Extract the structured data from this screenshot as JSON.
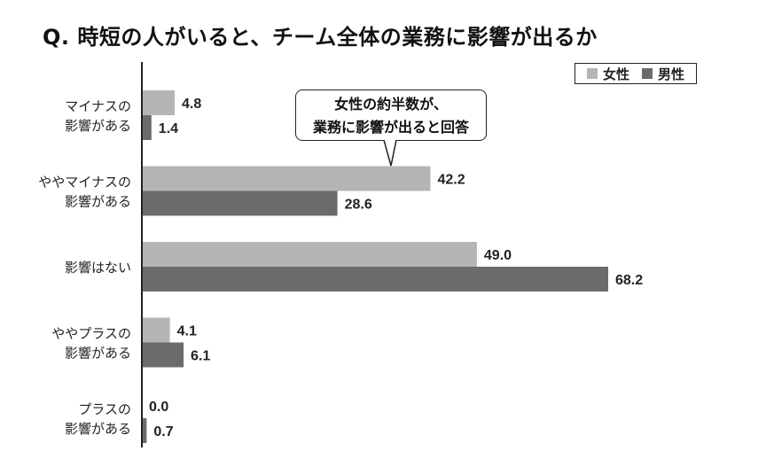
{
  "title": "Q. 時短の人がいると、チーム全体の業務に影響が出るか",
  "callout": {
    "line1": "女性の約半数が、",
    "line2": "業務に影響が出ると回答"
  },
  "colors": {
    "female": "#b5b5b5",
    "male": "#6b6b6b",
    "axis": "#222222"
  },
  "chart_data": {
    "type": "bar",
    "orientation": "horizontal",
    "categories": [
      [
        "マイナスの",
        "影響がある"
      ],
      [
        "ややマイナスの",
        "影響がある"
      ],
      [
        "影響はない"
      ],
      [
        "ややプラスの",
        "影響がある"
      ],
      [
        "プラスの",
        "影響がある"
      ]
    ],
    "series": [
      {
        "name": "女性",
        "values": [
          4.8,
          42.2,
          49.0,
          4.1,
          0.0
        ],
        "labels": [
          "4.8",
          "42.2",
          "49.0",
          "4.1",
          "0.0"
        ]
      },
      {
        "name": "男性",
        "values": [
          1.4,
          28.6,
          68.2,
          6.1,
          0.7
        ],
        "labels": [
          "1.4",
          "28.6",
          "68.2",
          "6.1",
          "0.7"
        ]
      }
    ],
    "xlim": [
      0,
      75
    ],
    "grid": false,
    "legend": "top-right"
  }
}
